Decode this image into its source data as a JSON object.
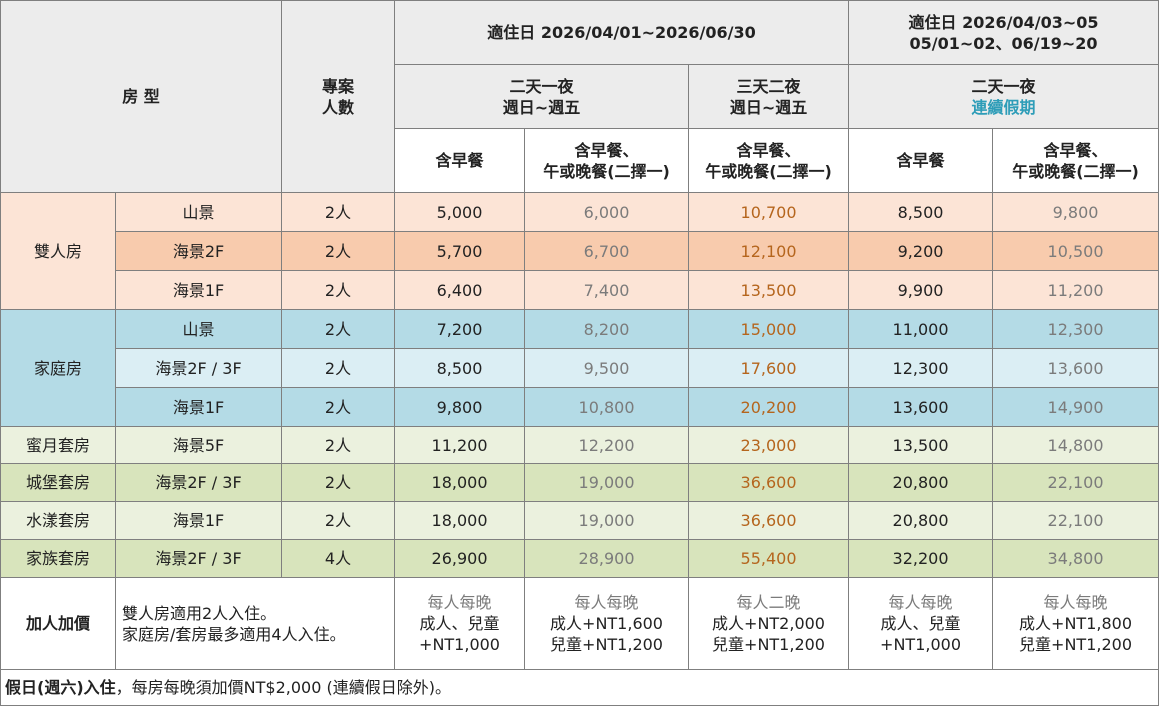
{
  "header": {
    "room_type": "房 型",
    "persons_line1": "專案",
    "persons_line2": "人數",
    "period1": "適住日 2026/04/01~2026/06/30",
    "period2_line1": "適住日 2026/04/03~05",
    "period2_line2": "05/01~02、06/19~20",
    "plan_a_line1": "二天一夜",
    "plan_a_line2": "週日~週五",
    "plan_b_line1": "三天二夜",
    "plan_b_line2": "週日~週五",
    "plan_c_line1": "二天一夜",
    "plan_c_line2": "連續假期",
    "breakfast": "含早餐",
    "meal_line1": "含早餐、",
    "meal_line2": "午或晚餐(二擇一)"
  },
  "groups": [
    {
      "name": "雙人房",
      "rows": [
        {
          "view": "山景",
          "persons": "2人",
          "v1": "5,000",
          "v2": "6,000",
          "v3": "10,700",
          "v4": "8,500",
          "v5": "9,800"
        },
        {
          "view": "海景2F",
          "persons": "2人",
          "v1": "5,700",
          "v2": "6,700",
          "v3": "12,100",
          "v4": "9,200",
          "v5": "10,500"
        },
        {
          "view": "海景1F",
          "persons": "2人",
          "v1": "6,400",
          "v2": "7,400",
          "v3": "13,500",
          "v4": "9,900",
          "v5": "11,200"
        }
      ]
    },
    {
      "name": "家庭房",
      "rows": [
        {
          "view": "山景",
          "persons": "2人",
          "v1": "7,200",
          "v2": "8,200",
          "v3": "15,000",
          "v4": "11,000",
          "v5": "12,300"
        },
        {
          "view": "海景2F / 3F",
          "persons": "2人",
          "v1": "8,500",
          "v2": "9,500",
          "v3": "17,600",
          "v4": "12,300",
          "v5": "13,600"
        },
        {
          "view": "海景1F",
          "persons": "2人",
          "v1": "9,800",
          "v2": "10,800",
          "v3": "20,200",
          "v4": "13,600",
          "v5": "14,900"
        }
      ]
    }
  ],
  "suites": [
    {
      "name": "蜜月套房",
      "view": "海景5F",
      "persons": "2人",
      "v1": "11,200",
      "v2": "12,200",
      "v3": "23,000",
      "v4": "13,500",
      "v5": "14,800"
    },
    {
      "name": "城堡套房",
      "view": "海景2F / 3F",
      "persons": "2人",
      "v1": "18,000",
      "v2": "19,000",
      "v3": "36,600",
      "v4": "20,800",
      "v5": "22,100"
    },
    {
      "name": "水漾套房",
      "view": "海景1F",
      "persons": "2人",
      "v1": "18,000",
      "v2": "19,000",
      "v3": "36,600",
      "v4": "20,800",
      "v5": "22,100"
    },
    {
      "name": "家族套房",
      "view": "海景2F / 3F",
      "persons": "4人",
      "v1": "26,900",
      "v2": "28,900",
      "v3": "55,400",
      "v4": "32,200",
      "v5": "34,800"
    }
  ],
  "extra": {
    "label": "加人加價",
    "note_line1": "雙人房適用2人入住。",
    "note_line2": "家庭房/套房最多適用4人入住。",
    "c1": [
      "每人每晚",
      "成人、兒童",
      "+NT1,000"
    ],
    "c2": [
      "每人每晚",
      "成人+NT1,600",
      "兒童+NT1,200"
    ],
    "c3": [
      "每人二晚",
      "成人+NT2,000",
      "兒童+NT1,200"
    ],
    "c4": [
      "每人每晚",
      "成人、兒童",
      "+NT1,000"
    ],
    "c5": [
      "每人每晚",
      "成人+NT1,800",
      "兒童+NT1,200"
    ]
  },
  "footer": {
    "bold_part": "假日(週六)入住",
    "rest": "，每房每晚須加價NT$2,000 (連續假日除外)。"
  },
  "colors": {
    "double_light": "#fce4d6",
    "double_dark": "#f8cbad",
    "family_dark": "#b4dbe6",
    "family_light": "#dbeef4",
    "suite_light": "#ebf1de",
    "suite_dark": "#d8e4bc",
    "price_gray": "#7b7b7b",
    "price_orange": "#b5651d",
    "holiday_teal": "#2e9db8"
  }
}
